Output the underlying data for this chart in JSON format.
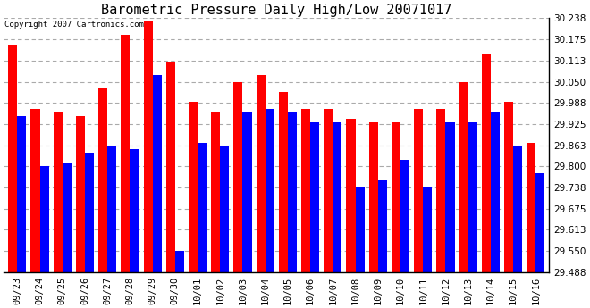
{
  "title": "Barometric Pressure Daily High/Low 20071017",
  "copyright": "Copyright 2007 Cartronics.com",
  "dates": [
    "09/23",
    "09/24",
    "09/25",
    "09/26",
    "09/27",
    "09/28",
    "09/29",
    "09/30",
    "10/01",
    "10/02",
    "10/03",
    "10/04",
    "10/05",
    "10/06",
    "10/07",
    "10/08",
    "10/09",
    "10/10",
    "10/11",
    "10/12",
    "10/13",
    "10/14",
    "10/15",
    "10/16"
  ],
  "highs": [
    30.16,
    29.97,
    29.96,
    29.95,
    30.03,
    30.19,
    30.23,
    30.11,
    29.99,
    29.96,
    30.05,
    30.07,
    30.02,
    29.97,
    29.97,
    29.94,
    29.93,
    29.93,
    29.97,
    29.97,
    30.05,
    30.13,
    29.99,
    29.87
  ],
  "lows": [
    29.95,
    29.8,
    29.81,
    29.84,
    29.86,
    29.85,
    30.07,
    29.55,
    29.87,
    29.86,
    29.96,
    29.97,
    29.96,
    29.93,
    29.93,
    29.74,
    29.76,
    29.82,
    29.74,
    29.93,
    29.93,
    29.96,
    29.86,
    29.78
  ],
  "ylim_min": 29.488,
  "ylim_max": 30.238,
  "yticks": [
    29.488,
    29.55,
    29.613,
    29.675,
    29.738,
    29.8,
    29.863,
    29.925,
    29.988,
    30.05,
    30.113,
    30.175,
    30.238
  ],
  "bar_color_high": "#FF0000",
  "bar_color_low": "#0000FF",
  "background_color": "#FFFFFF",
  "grid_color": "#AAAAAA",
  "title_fontsize": 11,
  "copyright_fontsize": 6.5,
  "tick_fontsize": 7.5,
  "bar_width": 0.4
}
